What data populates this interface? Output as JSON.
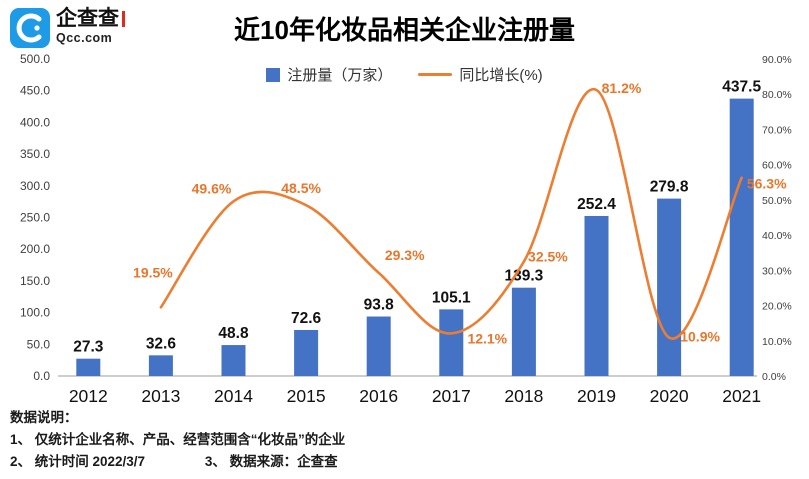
{
  "logo": {
    "brand": "企查查",
    "domain": "Qcc.com"
  },
  "title": "近10年化妆品相关企业注册量",
  "legend": {
    "bar_label": "注册量（万家）",
    "line_label": "同比增长(%)"
  },
  "colors": {
    "bar": "#4472C4",
    "line": "#ED7D31",
    "line_label": "#E8762B",
    "bar_label": "#111111",
    "axis_label": "#404040",
    "year_label": "#111111",
    "baseline": "#9e9e9e"
  },
  "chart_data": {
    "type": "combo",
    "title": "近10年化妆品相关企业注册量",
    "categories": [
      "2012",
      "2013",
      "2014",
      "2015",
      "2016",
      "2017",
      "2018",
      "2019",
      "2020",
      "2021"
    ],
    "series": [
      {
        "name": "注册量（万家）",
        "type": "bar",
        "axis": "left",
        "values": [
          27.3,
          32.6,
          48.8,
          72.6,
          93.8,
          105.1,
          139.3,
          252.4,
          279.8,
          437.5
        ]
      },
      {
        "name": "同比增长(%)",
        "type": "line",
        "axis": "right",
        "values": [
          null,
          19.5,
          49.6,
          48.5,
          29.3,
          12.1,
          32.5,
          81.2,
          10.9,
          56.3
        ],
        "labels": [
          "",
          "19.5%",
          "49.6%",
          "48.5%",
          "29.3%",
          "12.1%",
          "32.5%",
          "81.2%",
          "10.9%",
          "56.3%"
        ]
      }
    ],
    "left_axis": {
      "min": 0,
      "max": 500,
      "step": 50,
      "labels": [
        "500.0",
        "450.0",
        "400.0",
        "350.0",
        "300.0",
        "250.0",
        "200.0",
        "150.0",
        "100.0",
        "50.0",
        "0.0"
      ]
    },
    "right_axis": {
      "min": 0,
      "max": 90,
      "step": 10,
      "labels": [
        "90.0%",
        "80.0%",
        "70.0%",
        "60.0%",
        "50.0%",
        "40.0%",
        "30.0%",
        "20.0%",
        "10.0%",
        "0.0%"
      ]
    },
    "grid": false,
    "legend_position": "top-center"
  },
  "notes": {
    "heading": "数据说明：",
    "line1": "1、 仅统计企业名称、产品、经营范围含“化妆品”的企业",
    "line2a": "2、 统计时间 2022/3/7",
    "line2b": "3、 数据来源：企查查"
  }
}
